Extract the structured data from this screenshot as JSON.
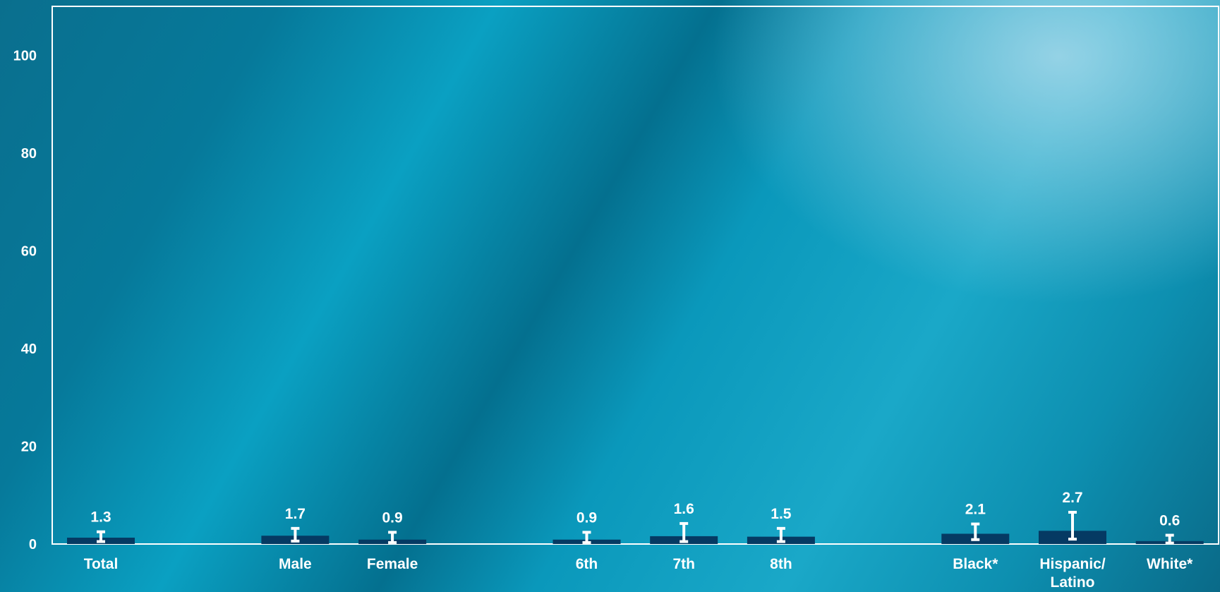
{
  "chart_data": {
    "type": "bar",
    "categories": [
      "Total",
      "Male",
      "Female",
      "6th",
      "7th",
      "8th",
      "Black*",
      "Hispanic/ Latino",
      "White*"
    ],
    "values": [
      1.3,
      1.7,
      0.9,
      0.9,
      1.6,
      1.5,
      2.1,
      2.7,
      0.6
    ],
    "error_bars": [
      {
        "low": 0.5,
        "high": 2.5
      },
      {
        "low": 0.6,
        "high": 3.2
      },
      {
        "low": 0.3,
        "high": 2.4
      },
      {
        "low": 0.3,
        "high": 2.4
      },
      {
        "low": 0.5,
        "high": 4.2
      },
      {
        "low": 0.5,
        "high": 3.2
      },
      {
        "low": 0.9,
        "high": 4.1
      },
      {
        "low": 1.0,
        "high": 6.5
      },
      {
        "low": 0.2,
        "high": 1.8
      }
    ],
    "yticks": [
      0,
      20,
      40,
      60,
      80,
      100
    ],
    "ylim": [
      0,
      110
    ],
    "grid": false,
    "colors": {
      "bar": "#053a63",
      "error_bar": "#ffffff",
      "text": "#ffffff",
      "axis": "#ffffff"
    }
  }
}
